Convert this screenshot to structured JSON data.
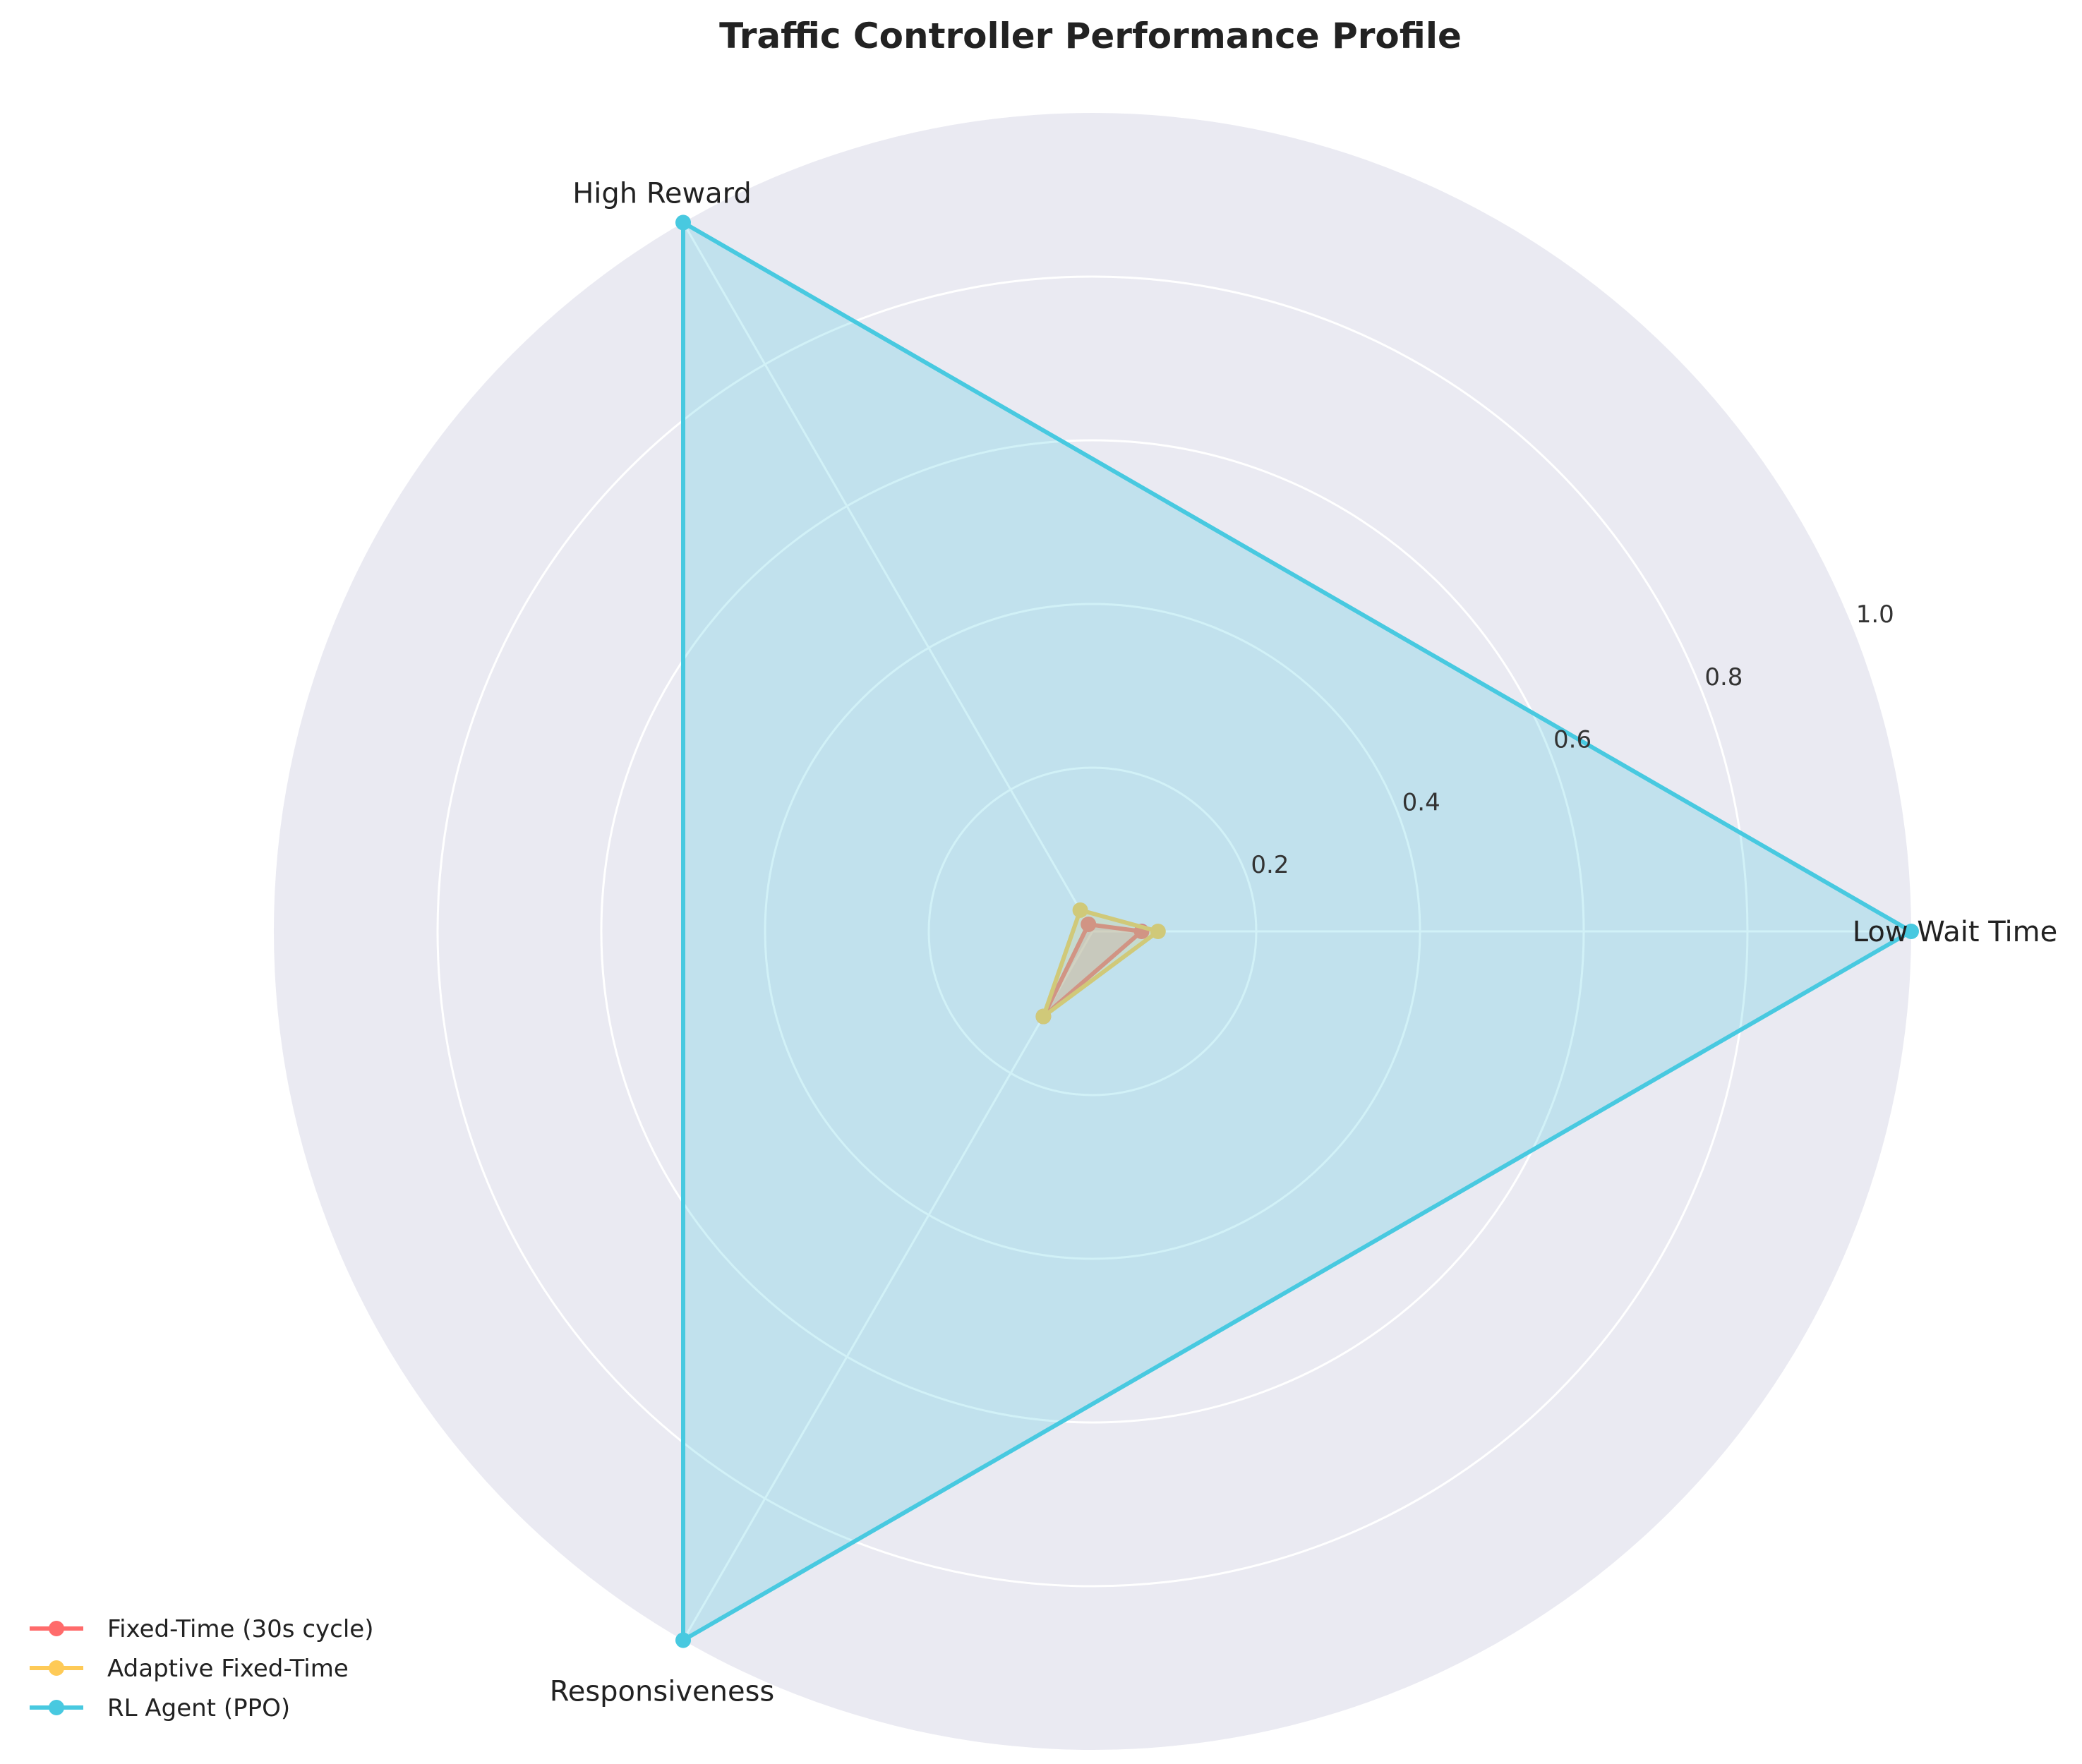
{
  "chart_data": {
    "type": "radar",
    "title": "Traffic Controller Performance Profile",
    "axes": [
      "Low Wait Time",
      "High Reward",
      "Responsiveness"
    ],
    "rlim": [
      0,
      1.0
    ],
    "r_ticks": [
      0.2,
      0.4,
      0.6,
      0.8,
      1.0
    ],
    "r_tick_labels": [
      "0.2",
      "0.4",
      "0.6",
      "0.8",
      "1.0"
    ],
    "grid": true,
    "legend_position": "bottom-left",
    "series": [
      {
        "name": "Fixed-Time (30s cycle)",
        "values": [
          0.06,
          0.01,
          0.12
        ],
        "color": "#ff6b6b"
      },
      {
        "name": "Adaptive Fixed-Time",
        "values": [
          0.08,
          0.03,
          0.12
        ],
        "color": "#feca57"
      },
      {
        "name": "RL Agent (PPO)",
        "values": [
          1.0,
          1.0,
          1.0
        ],
        "color": "#48c9e0"
      }
    ],
    "background_color": "#eaeaf2",
    "grid_color": "#ffffff"
  }
}
